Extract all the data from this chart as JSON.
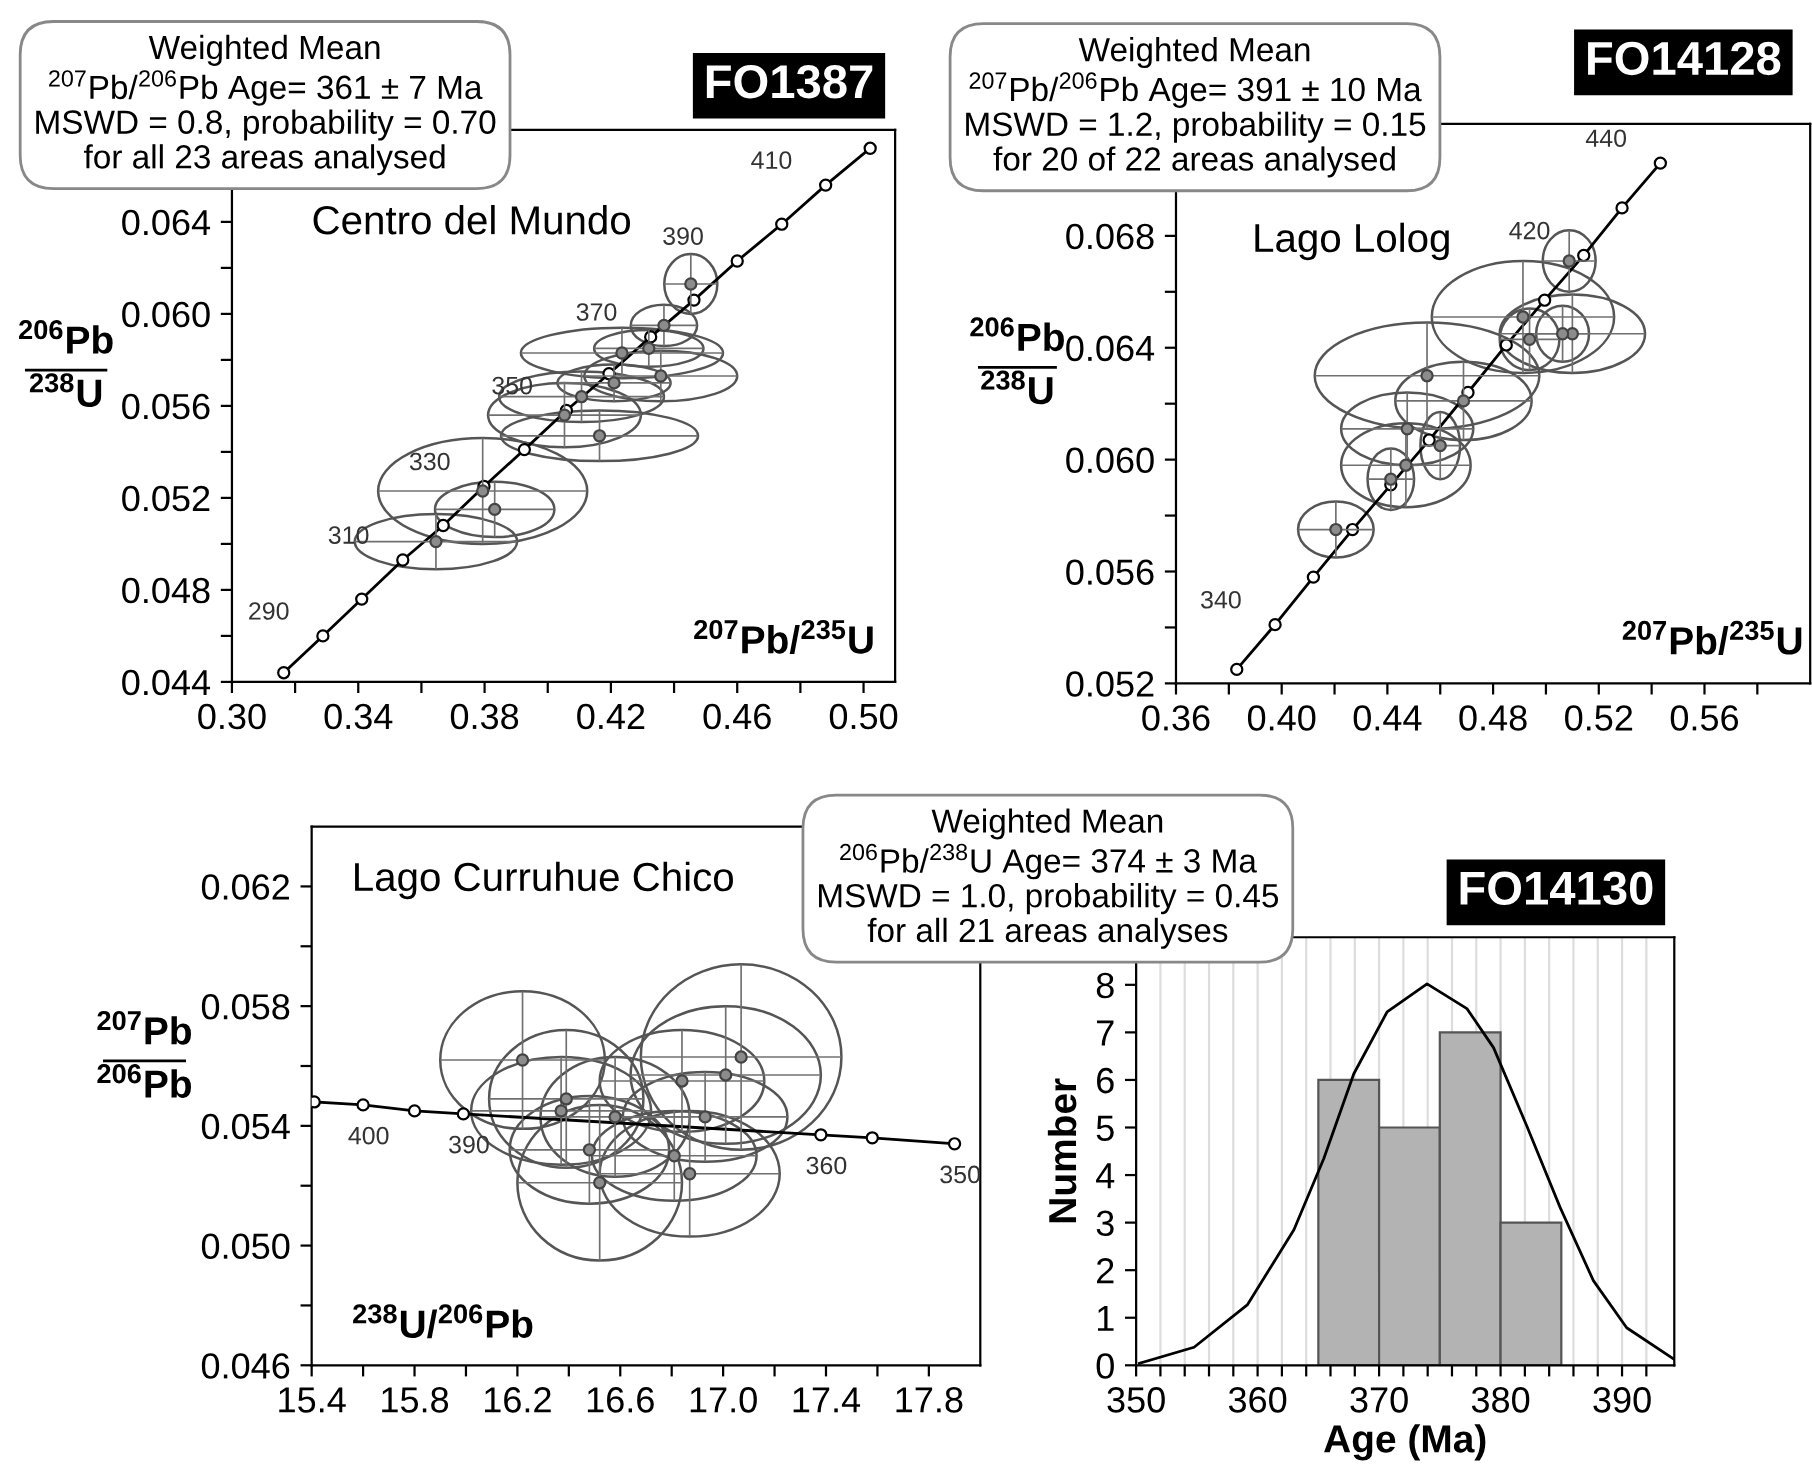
{
  "chart_data": [
    {
      "type": "scatter",
      "title": "FO1387",
      "subtitle": "Centro del Mundo",
      "xlabel": "$^{207}$Pb/$^{235}$U",
      "ylabel": "$^{206}$Pb\n$^{238}$U",
      "annotations": [
        "Weighted Mean\n$^{207}$Pb/$^{206}$Pb Age= 361 ± 7 Ma\nMSWD = 0.8, probability = 0.70\nfor all 23 areas analysed",
        {
          "text": "290",
          "x": 0.3288,
          "y": 0.046
        },
        {
          "text": "310",
          "x": 0.3541,
          "y": 0.0493
        },
        {
          "text": "330",
          "x": 0.3798,
          "y": 0.0525
        },
        {
          "text": "350",
          "x": 0.4059,
          "y": 0.0558
        },
        {
          "text": "370",
          "x": 0.4326,
          "y": 0.059
        },
        {
          "text": "390",
          "x": 0.46,
          "y": 0.0623
        },
        {
          "text": "410",
          "x": 0.488,
          "y": 0.0656
        }
      ],
      "xlim": [
        0.3,
        0.51
      ],
      "ylim": [
        0.044,
        0.068
      ],
      "grid": false,
      "xticks": [
        {
          "value": 0.3,
          "label": "0.30"
        },
        {
          "value": 0.32,
          "label": null
        },
        {
          "value": 0.34,
          "label": "0.34"
        },
        {
          "value": 0.36,
          "label": null
        },
        {
          "value": 0.38,
          "label": "0.38"
        },
        {
          "value": 0.4,
          "label": null
        },
        {
          "value": 0.42,
          "label": "0.42"
        },
        {
          "value": 0.44,
          "label": null
        },
        {
          "value": 0.46,
          "label": "0.46"
        },
        {
          "value": 0.48,
          "label": null
        },
        {
          "value": 0.5,
          "label": "0.50"
        }
      ],
      "yticks": [
        {
          "value": 0.044,
          "label": "0.044"
        },
        {
          "value": 0.046,
          "label": null
        },
        {
          "value": 0.048,
          "label": "0.048"
        },
        {
          "value": 0.05,
          "label": null
        },
        {
          "value": 0.052,
          "label": "0.052"
        },
        {
          "value": 0.054,
          "label": null
        },
        {
          "value": 0.056,
          "label": "0.056"
        },
        {
          "value": 0.058,
          "label": null
        },
        {
          "value": 0.06,
          "label": "0.060"
        },
        {
          "value": 0.062,
          "label": null
        },
        {
          "value": 0.064,
          "label": "0.064"
        },
        {
          "value": 0.066,
          "label": null
        }
      ],
      "series": [
        {
          "type": "scatter",
          "color": "#8c8c8c",
          "marker": "circle",
          "x": [
            0.3646,
            0.3794,
            0.3832,
            0.4164,
            0.4053,
            0.4107,
            0.4235,
            0.4358,
            0.432,
            0.4368,
            0.4453,
            0.421
          ],
          "values": [
            0.0501,
            0.0523,
            0.0515,
            0.0547,
            0.0556,
            0.0564,
            0.0583,
            0.0573,
            0.0585,
            0.0595,
            0.0613,
            0.057
          ],
          "xerrors": [
            0.0257,
            0.0331,
            0.0189,
            0.0312,
            0.0242,
            0.0261,
            0.032,
            0.0242,
            0.0173,
            0.0105,
            0.0084,
            0.0179
          ],
          "errors": [
            0.0012,
            0.0023,
            0.0012,
            0.0011,
            0.0014,
            0.0011,
            0.0011,
            0.0011,
            0.0008,
            0.0009,
            0.0013,
            0.0008
          ]
        },
        {
          "type": "line",
          "color": "#000000",
          "marker": "circle",
          "x": [
            0.3164,
            0.3288,
            0.3411,
            0.3541,
            0.3669,
            0.3798,
            0.3926,
            0.4059,
            0.4194,
            0.4326,
            0.4463,
            0.46,
            0.4741,
            0.488,
            0.5021
          ],
          "values": [
            0.0444,
            0.046,
            0.0476,
            0.0493,
            0.0508,
            0.0525,
            0.0541,
            0.0558,
            0.0574,
            0.059,
            0.0606,
            0.0623,
            0.0639,
            0.0656,
            0.0672
          ]
        }
      ]
    },
    {
      "type": "scatter",
      "title": "FO14128",
      "subtitle": "Lago Lolog",
      "xlabel": "$^{207}$Pb/$^{235}$U",
      "ylabel": "$^{206}$Pb\n$^{238}$U",
      "annotations": [
        "Weighted Mean\n$^{207}$Pb/$^{206}$Pb Age= 391 ± 10 Ma\nMSWD = 1.2, probability = 0.15\nfor 20 of 22 areas analysed",
        {
          "text": "340",
          "x": 0.3975,
          "y": 0.0541
        },
        {
          "text": "420",
          "x": 0.5143,
          "y": 0.0673
        },
        {
          "text": "440",
          "x": 0.5433,
          "y": 0.0706
        }
      ],
      "xlim": [
        0.36,
        0.6
      ],
      "ylim": [
        0.052,
        0.072
      ],
      "grid": false,
      "xticks": [
        {
          "value": 0.36,
          "label": "0.36"
        },
        {
          "value": 0.38,
          "label": null
        },
        {
          "value": 0.4,
          "label": "0.40"
        },
        {
          "value": 0.42,
          "label": null
        },
        {
          "value": 0.44,
          "label": "0.44"
        },
        {
          "value": 0.46,
          "label": null
        },
        {
          "value": 0.48,
          "label": "0.48"
        },
        {
          "value": 0.5,
          "label": null
        },
        {
          "value": 0.52,
          "label": "0.52"
        },
        {
          "value": 0.54,
          "label": null
        },
        {
          "value": 0.56,
          "label": "0.56"
        },
        {
          "value": 0.58,
          "label": null
        }
      ],
      "yticks": [
        {
          "value": 0.052,
          "label": "0.052"
        },
        {
          "value": 0.054,
          "label": null
        },
        {
          "value": 0.056,
          "label": "0.056"
        },
        {
          "value": 0.058,
          "label": null
        },
        {
          "value": 0.06,
          "label": "0.060"
        },
        {
          "value": 0.062,
          "label": null
        },
        {
          "value": 0.064,
          "label": "0.064"
        },
        {
          "value": 0.066,
          "label": null
        },
        {
          "value": 0.068,
          "label": "0.068"
        },
        {
          "value": 0.07,
          "label": null
        }
      ],
      "series": [
        {
          "type": "scatter",
          "color": "#8c8c8c",
          "marker": "circle",
          "x": [
            0.4205,
            0.4413,
            0.447,
            0.46,
            0.4475,
            0.4688,
            0.455,
            0.4913,
            0.51,
            0.5088,
            0.4938,
            0.5063
          ],
          "values": [
            0.0575,
            0.0593,
            0.0598,
            0.0605,
            0.0611,
            0.0621,
            0.063,
            0.0651,
            0.0645,
            0.0671,
            0.0643,
            0.0645
          ],
          "xerrors": [
            0.0143,
            0.0088,
            0.0245,
            0.0075,
            0.025,
            0.0258,
            0.0425,
            0.0345,
            0.0275,
            0.01,
            0.0113,
            0.01
          ],
          "errors": [
            0.001,
            0.0011,
            0.0015,
            0.0012,
            0.0013,
            0.0014,
            0.0019,
            0.002,
            0.0014,
            0.0011,
            0.0011,
            0.001
          ]
        },
        {
          "type": "line",
          "color": "#000000",
          "marker": "circle",
          "x": [
            0.383,
            0.3975,
            0.412,
            0.4268,
            0.4413,
            0.4558,
            0.4705,
            0.485,
            0.4995,
            0.5143,
            0.5288,
            0.5433
          ],
          "values": [
            0.0525,
            0.0541,
            0.0558,
            0.0575,
            0.0591,
            0.0607,
            0.0624,
            0.0641,
            0.0657,
            0.0673,
            0.069,
            0.0706
          ]
        }
      ]
    },
    {
      "type": "scatter",
      "subtitle": "Lago Curruhue Chico",
      "xlabel": "$^{238}$U/$^{206}$Pb",
      "ylabel": "$^{207}$Pb\n$^{206}$Pb",
      "annotations": [
        {
          "text": "400",
          "x": 15.6,
          "y": 0.0547
        },
        {
          "text": "390",
          "x": 15.99,
          "y": 0.0544
        },
        {
          "text": "360",
          "x": 17.38,
          "y": 0.0537
        },
        {
          "text": "350",
          "x": 17.9,
          "y": 0.0534
        }
      ],
      "xlim": [
        15.4,
        18.0
      ],
      "ylim": [
        0.046,
        0.064
      ],
      "grid": false,
      "xticks": [
        {
          "value": 15.4,
          "label": "15.4"
        },
        {
          "value": 15.6,
          "label": null
        },
        {
          "value": 15.8,
          "label": "15.8"
        },
        {
          "value": 16.0,
          "label": null
        },
        {
          "value": 16.2,
          "label": "16.2"
        },
        {
          "value": 16.4,
          "label": null
        },
        {
          "value": 16.6,
          "label": "16.6"
        },
        {
          "value": 16.8,
          "label": null
        },
        {
          "value": 17.0,
          "label": "17.0"
        },
        {
          "value": 17.2,
          "label": null
        },
        {
          "value": 17.4,
          "label": "17.4"
        },
        {
          "value": 17.6,
          "label": null
        },
        {
          "value": 17.8,
          "label": "17.8"
        }
      ],
      "yticks": [
        {
          "value": 0.046,
          "label": "0.046"
        },
        {
          "value": 0.048,
          "label": null
        },
        {
          "value": 0.05,
          "label": "0.050"
        },
        {
          "value": 0.052,
          "label": null
        },
        {
          "value": 0.054,
          "label": "0.054"
        },
        {
          "value": 0.056,
          "label": null
        },
        {
          "value": 0.058,
          "label": "0.058"
        },
        {
          "value": 0.06,
          "label": null
        },
        {
          "value": 0.062,
          "label": "0.062"
        }
      ],
      "series": [
        {
          "type": "line",
          "color": "#000000",
          "marker": "circle",
          "x": [
            15.41,
            15.6,
            15.8,
            15.99,
            17.38,
            17.58,
            17.9
          ],
          "values": [
            0.0548,
            0.0547,
            0.0545,
            0.0544,
            0.0537,
            0.0536,
            0.0534
          ]
        },
        {
          "type": "scatter",
          "color": "#8c8c8c",
          "marker": "circle",
          "x": [
            16.22,
            17.07,
            17.01,
            16.39,
            16.37,
            16.84,
            16.93,
            16.52,
            16.48,
            16.87,
            16.81,
            16.58
          ],
          "values": [
            0.0562,
            0.0563,
            0.0557,
            0.0549,
            0.0545,
            0.0555,
            0.0543,
            0.0521,
            0.0532,
            0.0524,
            0.053,
            0.0543
          ],
          "xerrors": [
            0.32,
            0.39,
            0.37,
            0.3,
            0.35,
            0.32,
            0.32,
            0.32,
            0.31,
            0.35,
            0.32,
            0.29
          ],
          "errors": [
            0.0023,
            0.0031,
            0.0023,
            0.0023,
            0.0018,
            0.0017,
            0.0015,
            0.0026,
            0.0018,
            0.0021,
            0.0015,
            0.002
          ]
        }
      ]
    },
    {
      "type": "histogram",
      "title": "FO14130",
      "xlabel": "Age (Ma)",
      "ylabel": "Number",
      "annotations": [
        "Weighted Mean\n$^{206}$Pb/$^{238}$U Age= 374 ± 3 Ma\nMSWD = 1.0, probability = 0.45\nfor all 21 areas analyses"
      ],
      "bins": [
        365,
        370,
        375,
        380,
        385
      ],
      "values": [
        6,
        5,
        7,
        3
      ],
      "color": "#b3b3b3",
      "xlim": [
        350,
        394.3
      ],
      "ylim": [
        0,
        9
      ],
      "grid": "x",
      "xticks": [
        350,
        {
          "value": 352,
          "label": null
        },
        {
          "value": 354,
          "label": null
        },
        {
          "value": 356,
          "label": null
        },
        {
          "value": 358,
          "label": null
        },
        360,
        {
          "value": 362,
          "label": null
        },
        {
          "value": 364,
          "label": null
        },
        {
          "value": 366,
          "label": null
        },
        {
          "value": 368,
          "label": null
        },
        370,
        {
          "value": 372,
          "label": null
        },
        {
          "value": 374,
          "label": null
        },
        {
          "value": 376,
          "label": null
        },
        {
          "value": 378,
          "label": null
        },
        380,
        {
          "value": 382,
          "label": null
        },
        {
          "value": 384,
          "label": null
        },
        {
          "value": 386,
          "label": null
        },
        {
          "value": 388,
          "label": null
        },
        390,
        {
          "value": 392,
          "label": null
        }
      ],
      "yticks": [
        0,
        1,
        2,
        3,
        4,
        5,
        6,
        7,
        8
      ],
      "series": [
        {
          "type": "line",
          "color": "#000000",
          "marker": "none",
          "x": [
            350.27,
            354.77,
            359.15,
            362.99,
            365.45,
            367.92,
            370.66,
            373.95,
            377.23,
            379.42,
            382.16,
            384.9,
            387.64,
            390.38,
            394.2
          ],
          "values": [
            0.04,
            0.38,
            1.27,
            2.85,
            4.35,
            6.13,
            7.43,
            8.02,
            7.5,
            6.68,
            5.03,
            3.32,
            1.78,
            0.79,
            0.14
          ]
        }
      ]
    }
  ]
}
